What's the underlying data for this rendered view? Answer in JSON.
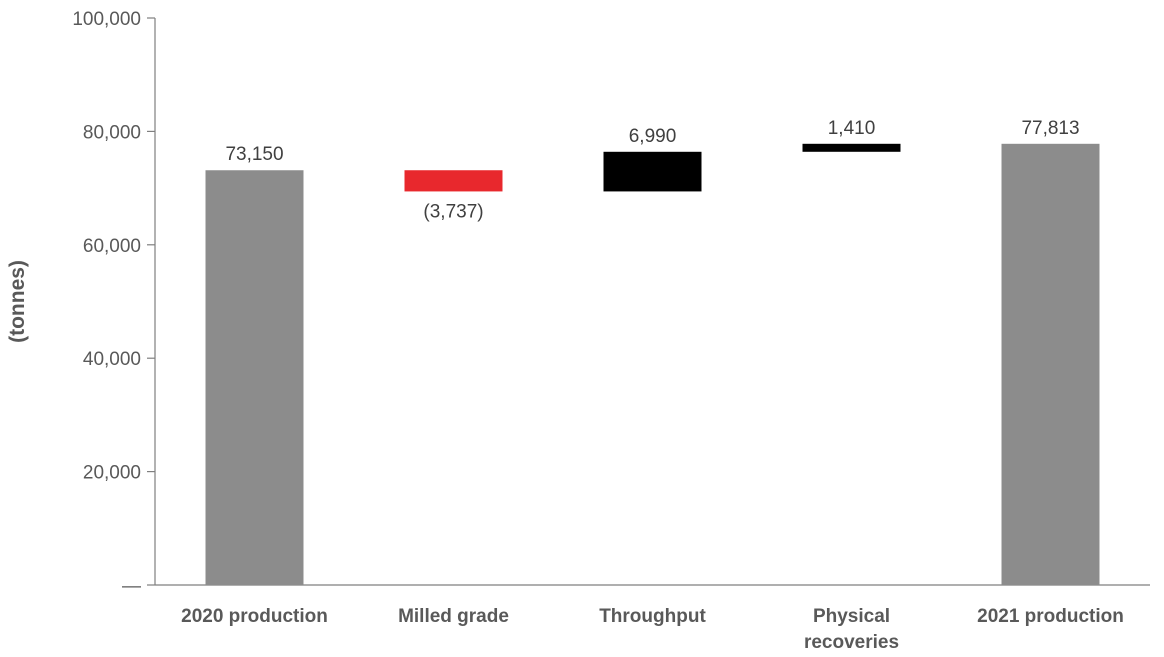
{
  "chart_data": {
    "type": "bar",
    "subtype": "waterfall",
    "ylabel": "(tonnes)",
    "ylim": [
      0,
      100000
    ],
    "yticks": [
      0,
      20000,
      40000,
      60000,
      80000,
      100000
    ],
    "ytick_labels": [
      "—",
      "20,000",
      "40,000",
      "60,000",
      "80,000",
      "100,000"
    ],
    "grid": false,
    "legend": "none",
    "bars": [
      {
        "category": "2020 production",
        "category_lines": [
          "2020 production"
        ],
        "kind": "total",
        "value": 73150,
        "label": "73,150",
        "color": "#8c8c8c"
      },
      {
        "category": "Milled grade",
        "category_lines": [
          "Milled grade"
        ],
        "kind": "delta",
        "value": -3737,
        "label": "(3,737)",
        "color": "#e8282d"
      },
      {
        "category": "Throughput",
        "category_lines": [
          "Throughput"
        ],
        "kind": "delta",
        "value": 6990,
        "label": "6,990",
        "color": "#000000"
      },
      {
        "category": "Physical recoveries",
        "category_lines": [
          "Physical",
          "recoveries"
        ],
        "kind": "delta",
        "value": 1410,
        "label": "1,410",
        "color": "#000000"
      },
      {
        "category": "2021 production",
        "category_lines": [
          "2021 production"
        ],
        "kind": "total",
        "value": 77813,
        "label": "77,813",
        "color": "#8c8c8c"
      }
    ]
  }
}
